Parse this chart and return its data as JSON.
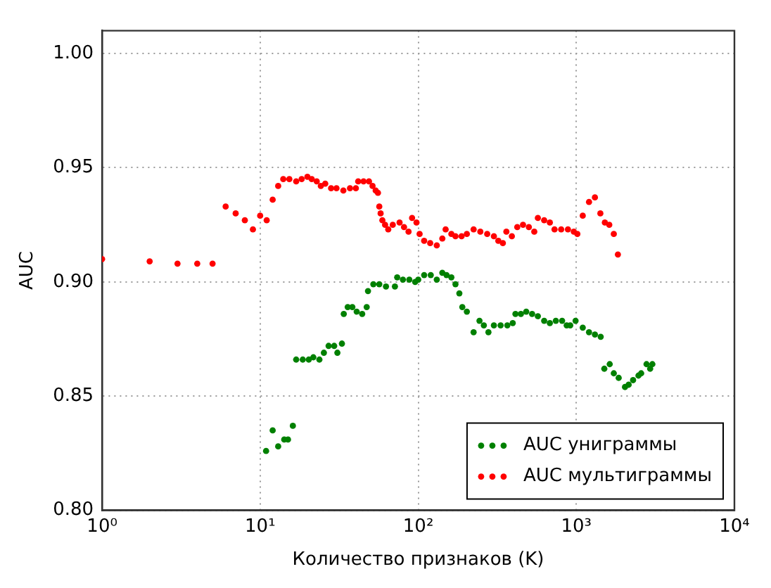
{
  "chart_data": {
    "type": "scatter",
    "xlabel": "Количество признаков (K)",
    "ylabel": "AUC",
    "log": "x",
    "xlim": [
      1,
      10000
    ],
    "xticks": [
      {
        "value": 1,
        "label": "10⁰"
      },
      {
        "value": 10,
        "label": "10¹"
      },
      {
        "value": 100,
        "label": "10²"
      },
      {
        "value": 1000,
        "label": "10³"
      },
      {
        "value": 10000,
        "label": "10⁴"
      }
    ],
    "ylim": [
      0.8,
      1.01
    ],
    "yticks": [
      {
        "value": 0.8,
        "label": "0.80"
      },
      {
        "value": 0.85,
        "label": "0.85"
      },
      {
        "value": 0.9,
        "label": "0.90"
      },
      {
        "value": 0.95,
        "label": "0.95"
      },
      {
        "value": 1.0,
        "label": "1.00"
      }
    ],
    "grid": true,
    "legend": "bottom right",
    "marker": "circle",
    "series": [
      {
        "name": "AUC униграммы",
        "color": "#008000",
        "x": [
          10.9,
          12.0,
          13.0,
          14.2,
          15.0,
          16.1,
          16.9,
          18.6,
          20.3,
          21.7,
          23.7,
          25.3,
          27.1,
          29.4,
          30.8,
          32.9,
          33.8,
          35.8,
          38.3,
          40.8,
          44.2,
          47.2,
          48.1,
          52.0,
          56.7,
          62.5,
          71.2,
          73.6,
          80.0,
          87.8,
          95.6,
          100,
          109,
          120,
          131,
          142,
          151,
          162,
          172,
          182,
          190,
          203,
          224,
          244,
          260,
          278,
          301,
          332,
          366,
          396,
          412,
          446,
          482,
          525,
          571,
          626,
          680,
          742,
          813,
          869,
          915,
          989,
          1098,
          1203,
          1311,
          1426,
          1503,
          1626,
          1726,
          1853,
          2032,
          2143,
          2286,
          2472,
          2571,
          2780,
          2931,
          3027
        ],
        "values": [
          0.826,
          0.835,
          0.828,
          0.831,
          0.831,
          0.837,
          0.866,
          0.866,
          0.866,
          0.867,
          0.866,
          0.869,
          0.872,
          0.872,
          0.869,
          0.873,
          0.886,
          0.889,
          0.889,
          0.887,
          0.886,
          0.889,
          0.896,
          0.899,
          0.899,
          0.898,
          0.898,
          0.902,
          0.901,
          0.901,
          0.9,
          0.901,
          0.903,
          0.903,
          0.901,
          0.904,
          0.903,
          0.902,
          0.899,
          0.895,
          0.889,
          0.887,
          0.878,
          0.883,
          0.881,
          0.878,
          0.881,
          0.881,
          0.881,
          0.882,
          0.886,
          0.886,
          0.887,
          0.886,
          0.885,
          0.883,
          0.882,
          0.883,
          0.883,
          0.881,
          0.881,
          0.883,
          0.88,
          0.878,
          0.877,
          0.876,
          0.862,
          0.864,
          0.86,
          0.858,
          0.854,
          0.855,
          0.857,
          0.859,
          0.86,
          0.864,
          0.862,
          0.864
        ]
      },
      {
        "name": "AUC мультиграммы",
        "color": "#ff0000",
        "x": [
          1,
          2,
          3,
          4,
          5,
          6.05,
          7,
          8,
          9,
          10,
          11,
          12,
          13,
          14,
          15.3,
          16.9,
          18.3,
          19.9,
          21.2,
          22.8,
          24.2,
          25.8,
          28.1,
          30.4,
          33.6,
          37.0,
          40.3,
          41.7,
          45.1,
          48.8,
          51.4,
          53.8,
          55.6,
          56.7,
          57.8,
          59.3,
          61.7,
          64.6,
          69.0,
          76.2,
          81.3,
          86.8,
          91.4,
          97.5,
          102,
          109,
          119,
          131,
          142,
          149,
          162,
          172,
          188,
          203,
          224,
          247,
          273,
          301,
          321,
          343,
          361,
          391,
          423,
          460,
          501,
          542,
          571,
          626,
          680,
          728,
          802,
          885,
          964,
          1015,
          1098,
          1203,
          1311,
          1419,
          1515,
          1616,
          1726,
          1832
        ],
        "values": [
          0.91,
          0.909,
          0.908,
          0.908,
          0.908,
          0.933,
          0.93,
          0.927,
          0.923,
          0.929,
          0.927,
          0.936,
          0.942,
          0.945,
          0.945,
          0.944,
          0.945,
          0.946,
          0.945,
          0.944,
          0.942,
          0.943,
          0.941,
          0.941,
          0.94,
          0.941,
          0.941,
          0.944,
          0.944,
          0.944,
          0.942,
          0.94,
          0.939,
          0.933,
          0.93,
          0.927,
          0.925,
          0.923,
          0.925,
          0.926,
          0.924,
          0.922,
          0.928,
          0.926,
          0.921,
          0.918,
          0.917,
          0.916,
          0.919,
          0.923,
          0.921,
          0.92,
          0.92,
          0.921,
          0.923,
          0.922,
          0.921,
          0.92,
          0.918,
          0.917,
          0.922,
          0.92,
          0.924,
          0.925,
          0.924,
          0.922,
          0.928,
          0.927,
          0.926,
          0.923,
          0.923,
          0.923,
          0.922,
          0.921,
          0.929,
          0.935,
          0.937,
          0.93,
          0.926,
          0.925,
          0.921,
          0.912
        ]
      }
    ]
  }
}
